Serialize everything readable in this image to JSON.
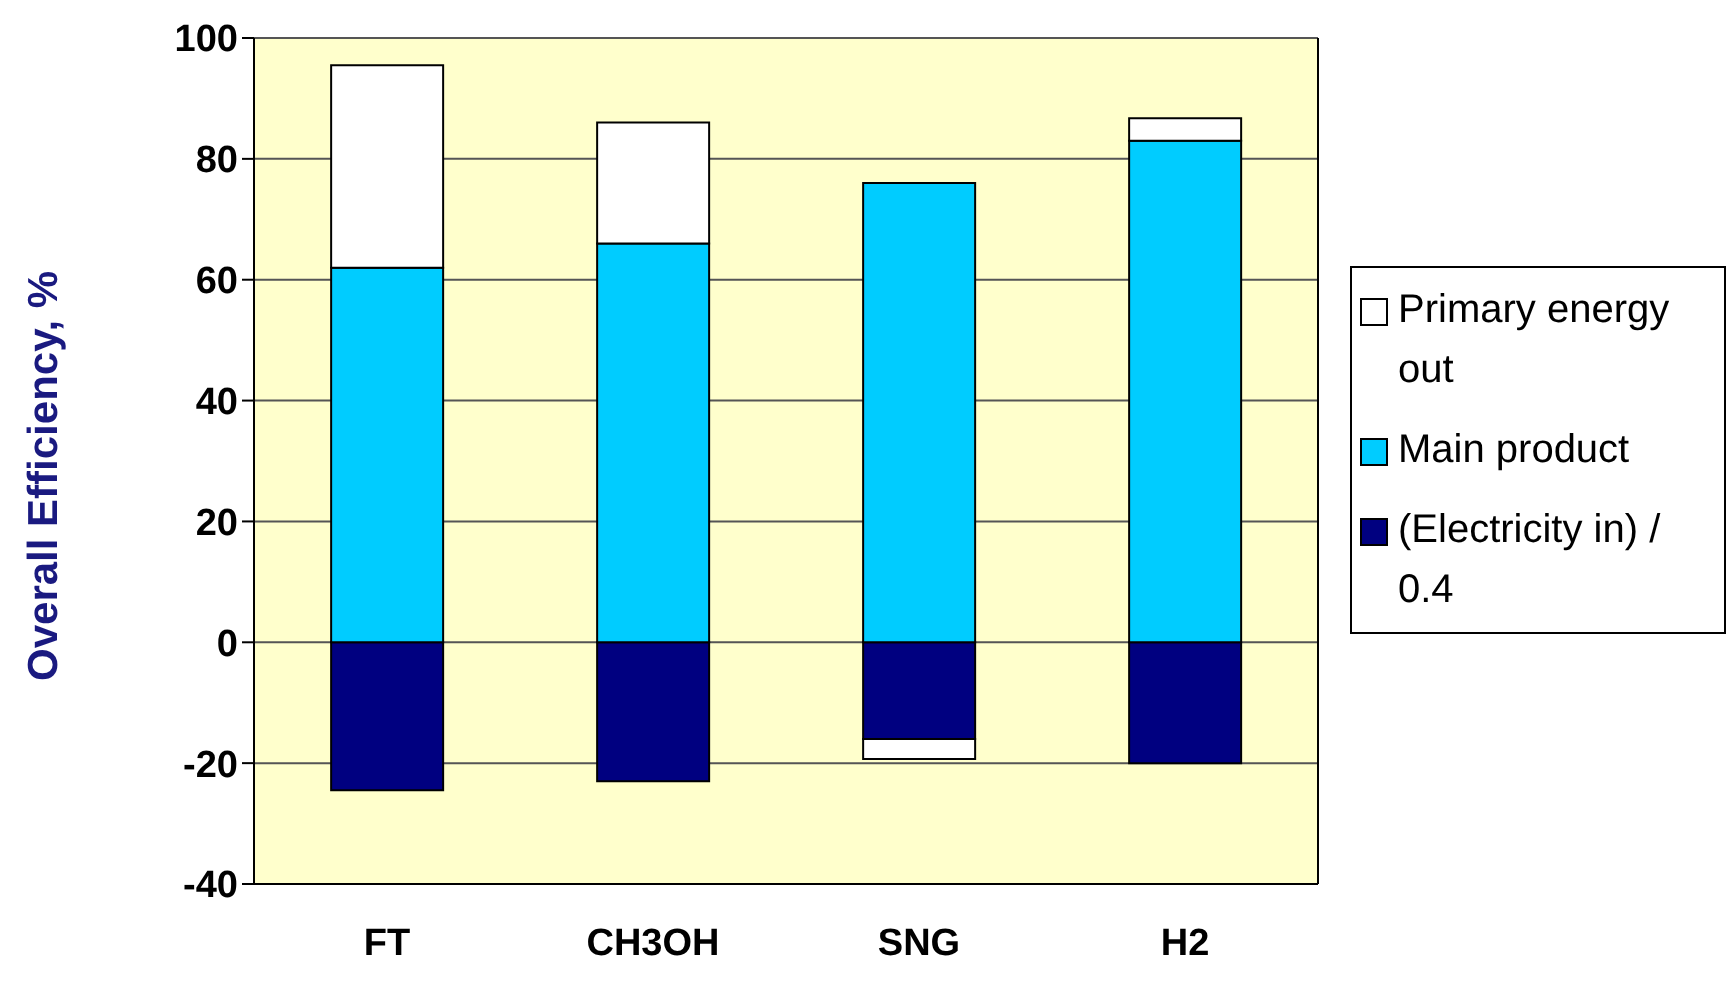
{
  "chart_data": {
    "type": "bar",
    "stacked": true,
    "ylabel": "Overall Efficiency, %",
    "categories": [
      "FT",
      "CH3OH",
      "SNG",
      "H2"
    ],
    "series": [
      {
        "name": "Primary energy out",
        "color": "#ffffff",
        "values": [
          33.5,
          20,
          -3.3,
          3.7
        ]
      },
      {
        "name": "Main product",
        "color": "#00ccff",
        "values": [
          62,
          66,
          76,
          83
        ]
      },
      {
        "name": "(Electricity in) / 0.4",
        "color": "#000080",
        "values": [
          -24.5,
          -23,
          -16,
          -20
        ]
      }
    ],
    "ylim": [
      -40,
      100
    ],
    "yticks": [
      -40,
      -20,
      0,
      20,
      40,
      60,
      80,
      100
    ],
    "grid": "y",
    "legend": "right"
  }
}
